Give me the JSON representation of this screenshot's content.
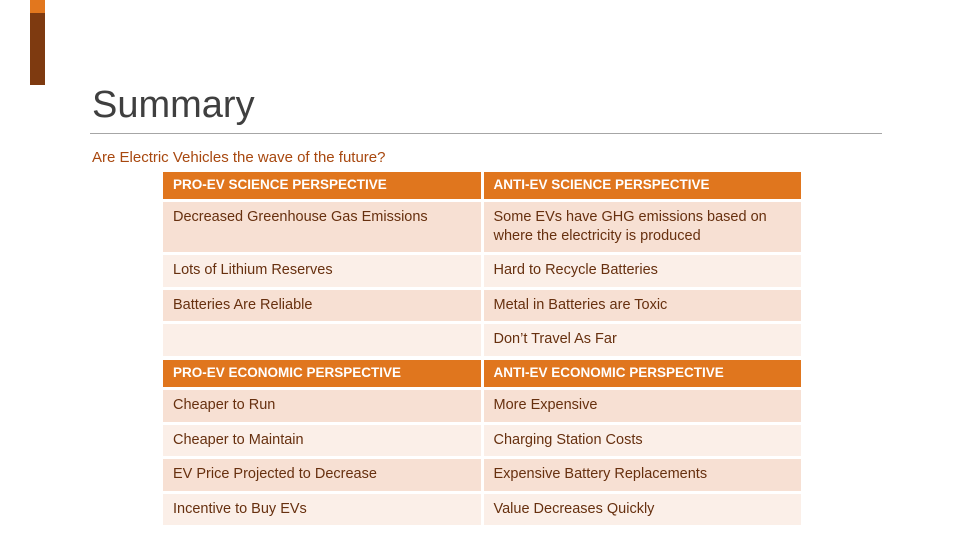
{
  "slide": {
    "title": "Summary",
    "subtitle": "Are Electric Vehicles the wave of the future?"
  },
  "colors": {
    "header_bg": "#E0761E",
    "row_band_dark": "#F7E0D3",
    "row_band_light": "#FBEFE8",
    "body_text": "#67300F",
    "subtitle_text": "#A8480F",
    "title_text": "#3F3F3F",
    "accent_orange": "#E2771E",
    "accent_dark": "#7E3A10"
  },
  "tables": [
    {
      "headers": [
        "PRO-EV SCIENCE PERSPECTIVE",
        "ANTI-EV SCIENCE PERSPECTIVE"
      ],
      "rows": [
        [
          "Decreased Greenhouse Gas Emissions",
          "Some EVs have GHG emissions based on where the electricity is produced"
        ],
        [
          "Lots of Lithium Reserves",
          "Hard to Recycle Batteries"
        ],
        [
          "Batteries Are Reliable",
          "Metal in Batteries are Toxic"
        ],
        [
          "",
          "Don’t Travel As Far"
        ]
      ]
    },
    {
      "headers": [
        "PRO-EV ECONOMIC PERSPECTIVE",
        "ANTI-EV ECONOMIC PERSPECTIVE"
      ],
      "rows": [
        [
          "Cheaper to Run",
          "More Expensive"
        ],
        [
          "Cheaper to Maintain",
          "Charging Station Costs"
        ],
        [
          "EV Price Projected to Decrease",
          "Expensive Battery Replacements"
        ],
        [
          "Incentive to Buy EVs",
          "Value Decreases Quickly"
        ]
      ]
    }
  ]
}
